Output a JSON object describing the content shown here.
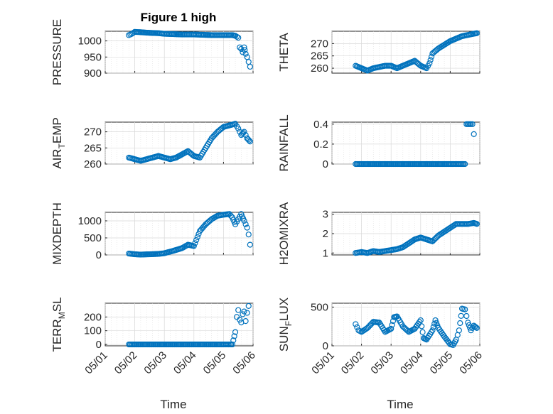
{
  "figure": {
    "title": "Figure 1 high"
  },
  "chart_data": [
    {
      "type": "scatter",
      "ylabel": "PRESSURE",
      "ylim": [
        900,
        1030
      ],
      "yticks": [
        900,
        950,
        1000
      ],
      "xlim": [
        0,
        5
      ],
      "grid": true,
      "color": "#0072BD",
      "series": [
        {
          "x": [
            0.8,
            0.9,
            1.0,
            1.2,
            1.5,
            1.8,
            2.0,
            2.3,
            2.6,
            3.0,
            3.3,
            3.6,
            3.9,
            4.1,
            4.3,
            4.4,
            4.5,
            4.55,
            4.6,
            4.65,
            4.7,
            4.72,
            4.75,
            4.8,
            4.85,
            4.9
          ],
          "y": [
            1018,
            1022,
            1028,
            1027,
            1025,
            1024,
            1022,
            1021,
            1020,
            1020,
            1019,
            1018,
            1018,
            1018,
            1018,
            1016,
            1010,
            980,
            975,
            965,
            980,
            972,
            960,
            950,
            935,
            920
          ]
        }
      ]
    },
    {
      "type": "scatter",
      "ylabel": "THETA",
      "ylim": [
        258,
        275
      ],
      "yticks": [
        260,
        265,
        270
      ],
      "xlim": [
        0,
        5
      ],
      "grid": true,
      "color": "#0072BD",
      "series": [
        {
          "x": [
            0.8,
            1.0,
            1.2,
            1.4,
            1.6,
            1.8,
            2.0,
            2.2,
            2.4,
            2.6,
            2.8,
            3.0,
            3.2,
            3.3,
            3.4,
            3.6,
            3.8,
            4.0,
            4.2,
            4.4,
            4.6,
            4.8,
            4.9
          ],
          "y": [
            261,
            260,
            259,
            260,
            260.5,
            261,
            261,
            260,
            261,
            262,
            263,
            261,
            260,
            262,
            266,
            268,
            269.5,
            271,
            272,
            273,
            273.5,
            274,
            274.2
          ]
        }
      ]
    },
    {
      "type": "scatter",
      "ylabel": "AIR_TEMP",
      "ylim": [
        260,
        273
      ],
      "yticks": [
        260,
        265,
        270
      ],
      "xlim": [
        0,
        5
      ],
      "grid": true,
      "color": "#0072BD",
      "series": [
        {
          "x": [
            0.8,
            1.0,
            1.2,
            1.4,
            1.6,
            1.8,
            2.0,
            2.2,
            2.4,
            2.6,
            2.8,
            3.0,
            3.2,
            3.4,
            3.6,
            3.8,
            4.0,
            4.2,
            4.4,
            4.5,
            4.6,
            4.7,
            4.8,
            4.9
          ],
          "y": [
            262,
            261.5,
            261,
            261.5,
            262,
            262.5,
            262,
            261.5,
            262,
            263,
            264,
            262.5,
            262,
            265,
            268,
            270,
            271.5,
            272,
            272.5,
            271,
            269,
            270,
            268,
            267
          ]
        }
      ]
    },
    {
      "type": "scatter",
      "ylabel": "RAINFALL",
      "ylim": [
        0,
        0.42
      ],
      "yticks": [
        0,
        0.2,
        0.4
      ],
      "xlim": [
        0,
        5
      ],
      "grid": true,
      "color": "#0072BD",
      "series": [
        {
          "x": [
            0.8,
            1.0,
            1.5,
            2.0,
            2.5,
            3.0,
            3.5,
            4.0,
            4.3,
            4.5,
            4.55,
            4.7,
            4.75,
            4.8
          ],
          "y": [
            0,
            0,
            0,
            0,
            0,
            0,
            0,
            0,
            0,
            0,
            0.4,
            0.4,
            0.4,
            0.3
          ]
        }
      ]
    },
    {
      "type": "scatter",
      "ylabel": "MIXDEPTH",
      "ylim": [
        0,
        1250
      ],
      "yticks": [
        0,
        500,
        1000
      ],
      "xlim": [
        0,
        5
      ],
      "grid": true,
      "color": "#0072BD",
      "series": [
        {
          "x": [
            0.8,
            1.0,
            1.2,
            1.5,
            1.8,
            2.0,
            2.3,
            2.6,
            2.8,
            3.0,
            3.2,
            3.4,
            3.6,
            3.8,
            4.0,
            4.2,
            4.3,
            4.4,
            4.5,
            4.6,
            4.7,
            4.8,
            4.85,
            4.9
          ],
          "y": [
            40,
            20,
            10,
            20,
            30,
            50,
            120,
            200,
            300,
            260,
            700,
            900,
            1050,
            1150,
            1180,
            1200,
            1100,
            900,
            1050,
            1200,
            1000,
            800,
            600,
            300
          ]
        }
      ]
    },
    {
      "type": "scatter",
      "ylabel": "H2OMIXRA",
      "ylim": [
        0.9,
        3.1
      ],
      "yticks": [
        1,
        2,
        3
      ],
      "xlim": [
        0,
        5
      ],
      "grid": true,
      "color": "#0072BD",
      "series": [
        {
          "x": [
            0.8,
            1.0,
            1.2,
            1.4,
            1.6,
            1.8,
            2.0,
            2.2,
            2.4,
            2.6,
            2.8,
            3.0,
            3.2,
            3.4,
            3.6,
            3.8,
            4.0,
            4.2,
            4.4,
            4.6,
            4.8,
            4.9
          ],
          "y": [
            1.0,
            1.05,
            1.0,
            1.1,
            1.05,
            1.1,
            1.15,
            1.2,
            1.3,
            1.5,
            1.7,
            1.8,
            1.7,
            1.6,
            1.9,
            2.1,
            2.3,
            2.5,
            2.5,
            2.5,
            2.55,
            2.5
          ]
        }
      ]
    },
    {
      "type": "scatter",
      "ylabel": "TERR_MSL",
      "ylim": [
        -10,
        300
      ],
      "yticks": [
        0,
        100,
        200
      ],
      "xlim": [
        0,
        5
      ],
      "grid": true,
      "color": "#0072BD",
      "series": [
        {
          "x": [
            0.8,
            1.0,
            1.5,
            2.0,
            2.5,
            3.0,
            3.5,
            4.0,
            4.3,
            4.4,
            4.45,
            4.5,
            4.55,
            4.6,
            4.65,
            4.7,
            4.75,
            4.8,
            4.85
          ],
          "y": [
            0,
            0,
            0,
            0,
            0,
            0,
            0,
            0,
            0,
            90,
            200,
            250,
            180,
            160,
            220,
            240,
            170,
            230,
            280
          ]
        }
      ]
    },
    {
      "type": "scatter",
      "ylabel": "SUN_FLUX",
      "ylim": [
        0,
        550
      ],
      "yticks": [
        0,
        500
      ],
      "xlim": [
        0,
        5
      ],
      "grid": true,
      "color": "#0072BD",
      "series": [
        {
          "x": [
            0.8,
            0.9,
            1.0,
            1.2,
            1.4,
            1.6,
            1.8,
            2.0,
            2.1,
            2.2,
            2.4,
            2.6,
            2.8,
            3.0,
            3.1,
            3.2,
            3.4,
            3.5,
            3.6,
            3.8,
            4.0,
            4.1,
            4.2,
            4.3,
            4.4,
            4.5,
            4.6,
            4.7,
            4.8,
            4.9
          ],
          "y": [
            280,
            200,
            180,
            230,
            310,
            300,
            180,
            220,
            370,
            380,
            250,
            180,
            220,
            330,
            100,
            80,
            200,
            330,
            230,
            120,
            20,
            10,
            80,
            200,
            480,
            470,
            300,
            200,
            260,
            230
          ]
        }
      ]
    }
  ],
  "x_tick_labels": [
    "05/01",
    "05/02",
    "05/03",
    "05/04",
    "05/05",
    "05/06"
  ],
  "x_label": "Time"
}
